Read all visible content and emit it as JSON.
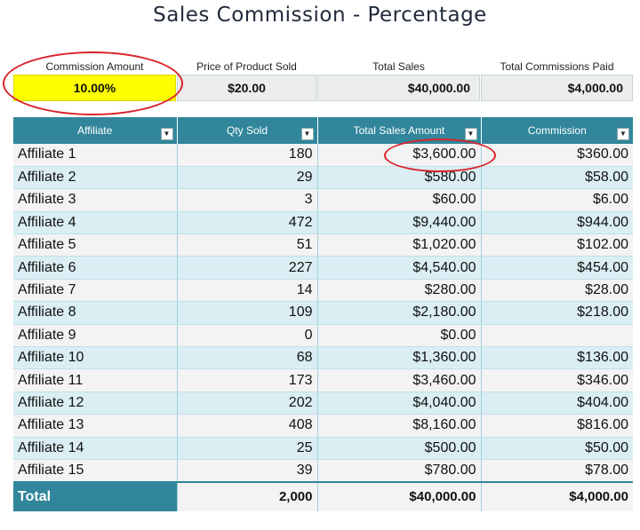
{
  "title": "Sales Commission - Percentage",
  "summary": {
    "commission_amount": {
      "label": "Commission Amount",
      "value": "10.00%"
    },
    "price_of_product": {
      "label": "Price of Product Sold",
      "value": "$20.00"
    },
    "total_sales": {
      "label": "Total Sales",
      "value": "$40,000.00"
    },
    "total_commissions": {
      "label": "Total Commissions Paid",
      "value": "$4,000.00"
    }
  },
  "table": {
    "headers": [
      "Affiliate",
      "Qty Sold",
      "Total Sales Amount",
      "Commission"
    ],
    "rows": [
      [
        "Affiliate 1",
        "180",
        "$3,600.00",
        "$360.00"
      ],
      [
        "Affiliate 2",
        "29",
        "$580.00",
        "$58.00"
      ],
      [
        "Affiliate 3",
        "3",
        "$60.00",
        "$6.00"
      ],
      [
        "Affiliate 4",
        "472",
        "$9,440.00",
        "$944.00"
      ],
      [
        "Affiliate 5",
        "51",
        "$1,020.00",
        "$102.00"
      ],
      [
        "Affiliate 6",
        "227",
        "$4,540.00",
        "$454.00"
      ],
      [
        "Affiliate 7",
        "14",
        "$280.00",
        "$28.00"
      ],
      [
        "Affiliate 8",
        "109",
        "$2,180.00",
        "$218.00"
      ],
      [
        "Affiliate 9",
        "0",
        "$0.00",
        ""
      ],
      [
        "Affiliate 10",
        "68",
        "$1,360.00",
        "$136.00"
      ],
      [
        "Affiliate 11",
        "173",
        "$3,460.00",
        "$346.00"
      ],
      [
        "Affiliate 12",
        "202",
        "$4,040.00",
        "$404.00"
      ],
      [
        "Affiliate 13",
        "408",
        "$8,160.00",
        "$816.00"
      ],
      [
        "Affiliate 14",
        "25",
        "$500.00",
        "$50.00"
      ],
      [
        "Affiliate 15",
        "39",
        "$780.00",
        "$78.00"
      ]
    ],
    "totals": [
      "Total",
      "2,000",
      "$40,000.00",
      "$4,000.00"
    ]
  },
  "colors": {
    "header_bg": "#31869b",
    "highlight_yellow": "#ffff00",
    "annotation_red": "#d9232a"
  }
}
